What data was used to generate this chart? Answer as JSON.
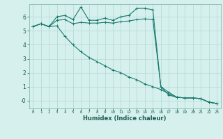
{
  "xlabel": "Humidex (Indice chaleur)",
  "bg_color": "#d6f0ee",
  "grid_color": "#b8dbd8",
  "line_color": "#1a7a6e",
  "x_ticks": [
    0,
    1,
    2,
    3,
    4,
    5,
    6,
    7,
    8,
    9,
    10,
    11,
    12,
    13,
    14,
    15,
    16,
    17,
    18,
    19,
    20,
    21,
    22,
    23
  ],
  "y_ticks": [
    0,
    1,
    2,
    3,
    4,
    5,
    6
  ],
  "ylim": [
    -0.55,
    6.9
  ],
  "xlim": [
    -0.5,
    23.5
  ],
  "line1_x": [
    0,
    1,
    2,
    3,
    4,
    5,
    6,
    7,
    8,
    9,
    10,
    11,
    12,
    13,
    14,
    15,
    16,
    17,
    18,
    19,
    20,
    21,
    22,
    23
  ],
  "line1_y": [
    5.3,
    5.5,
    5.3,
    6.0,
    6.1,
    5.8,
    6.7,
    5.75,
    5.75,
    5.9,
    5.75,
    6.0,
    6.1,
    6.6,
    6.6,
    6.5,
    1.0,
    0.4,
    0.25,
    0.2,
    0.2,
    0.15,
    -0.1,
    -0.2
  ],
  "line2_x": [
    0,
    1,
    2,
    3,
    4,
    5,
    6,
    7,
    8,
    9,
    10,
    11,
    12,
    13,
    14,
    15,
    16,
    17,
    18,
    19,
    20,
    21,
    22,
    23
  ],
  "line2_y": [
    5.3,
    5.5,
    5.3,
    5.75,
    5.8,
    5.5,
    5.6,
    5.55,
    5.55,
    5.6,
    5.55,
    5.65,
    5.7,
    5.8,
    5.85,
    5.8,
    1.0,
    0.6,
    0.25,
    0.2,
    0.2,
    0.15,
    -0.1,
    -0.2
  ],
  "line3_x": [
    0,
    1,
    2,
    3,
    4,
    5,
    6,
    7,
    8,
    9,
    10,
    11,
    12,
    13,
    14,
    15,
    16,
    17,
    18,
    19,
    20,
    21,
    22,
    23
  ],
  "line3_y": [
    5.3,
    5.5,
    5.3,
    5.35,
    4.6,
    4.0,
    3.5,
    3.1,
    2.8,
    2.5,
    2.2,
    2.0,
    1.7,
    1.5,
    1.2,
    1.0,
    0.8,
    0.5,
    0.25,
    0.2,
    0.2,
    0.15,
    -0.1,
    -0.2
  ]
}
